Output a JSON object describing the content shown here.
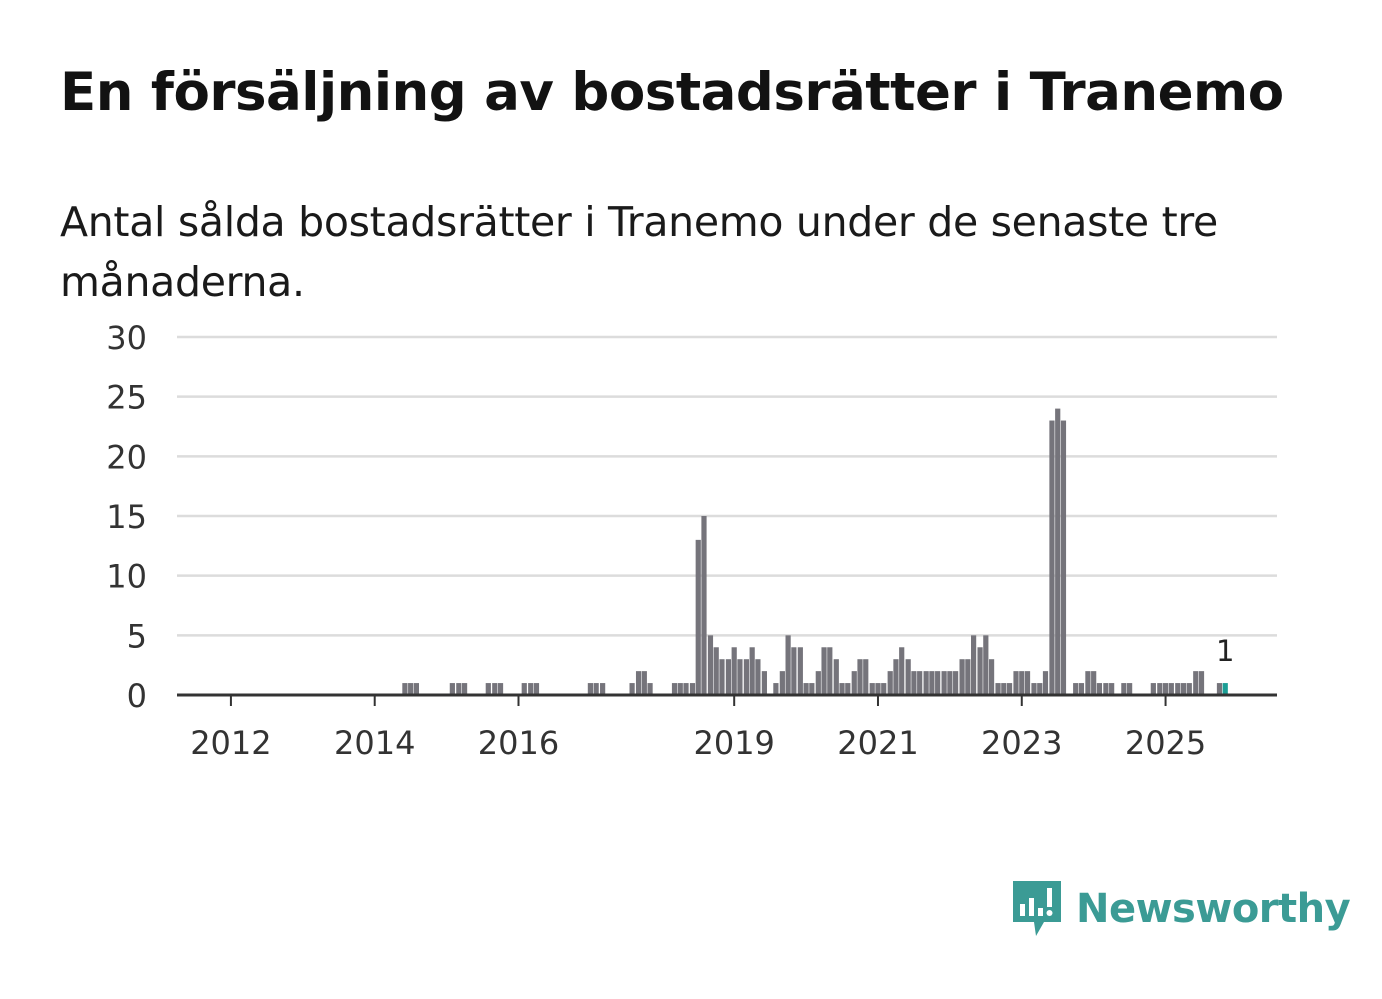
{
  "title": "En försäljning av bostadsrätter i Tranemo",
  "subtitle": "Antal sålda bostadsrätter i Tranemo under de senaste tre månaderna.",
  "brand": {
    "name": "Newsworthy",
    "icon": "newsworthy-logo-icon",
    "color": "#3b9b95"
  },
  "colors": {
    "bar": "#75747b",
    "highlight": "#1b9e95",
    "grid": "#dcdcdc",
    "axis": "#333333"
  },
  "chart_data": {
    "type": "bar",
    "xlabel": "",
    "ylabel": "",
    "ylim": [
      0,
      30
    ],
    "yticks": [
      0,
      5,
      10,
      15,
      20,
      25,
      30
    ],
    "xticks": [
      "2012",
      "2014",
      "2016",
      "2019",
      "2021",
      "2023",
      "2025"
    ],
    "xtick_positions": [
      2012.0,
      2014.0,
      2016.0,
      2019.0,
      2021.0,
      2023.0,
      2025.0
    ],
    "xlim": [
      2011.25,
      2026.55
    ],
    "grid": true,
    "annotation": {
      "text": "1",
      "x": 2025.83
    },
    "highlight_last": true,
    "x": [
      2014.42,
      2014.5,
      2014.58,
      2015.08,
      2015.17,
      2015.25,
      2015.58,
      2015.67,
      2015.75,
      2016.08,
      2016.17,
      2016.25,
      2017.0,
      2017.08,
      2017.17,
      2017.58,
      2017.67,
      2017.75,
      2017.83,
      2018.17,
      2018.25,
      2018.33,
      2018.42,
      2018.5,
      2018.58,
      2018.67,
      2018.75,
      2018.83,
      2018.92,
      2019.0,
      2019.08,
      2019.17,
      2019.25,
      2019.33,
      2019.42,
      2019.58,
      2019.67,
      2019.75,
      2019.83,
      2019.92,
      2020.0,
      2020.08,
      2020.17,
      2020.25,
      2020.33,
      2020.42,
      2020.5,
      2020.58,
      2020.67,
      2020.75,
      2020.83,
      2020.92,
      2021.0,
      2021.08,
      2021.17,
      2021.25,
      2021.33,
      2021.42,
      2021.5,
      2021.58,
      2021.67,
      2021.75,
      2021.83,
      2021.92,
      2022.0,
      2022.08,
      2022.17,
      2022.25,
      2022.33,
      2022.42,
      2022.5,
      2022.58,
      2022.67,
      2022.75,
      2022.83,
      2022.92,
      2023.0,
      2023.08,
      2023.17,
      2023.25,
      2023.33,
      2023.42,
      2023.5,
      2023.58,
      2023.75,
      2023.83,
      2023.92,
      2024.0,
      2024.08,
      2024.17,
      2024.25,
      2024.42,
      2024.5,
      2024.83,
      2024.92,
      2025.0,
      2025.08,
      2025.17,
      2025.25,
      2025.33,
      2025.42,
      2025.5,
      2025.75,
      2025.83
    ],
    "values": [
      1,
      1,
      1,
      1,
      1,
      1,
      1,
      1,
      1,
      1,
      1,
      1,
      1,
      1,
      1,
      1,
      2,
      2,
      1,
      1,
      1,
      1,
      1,
      13,
      15,
      5,
      4,
      3,
      3,
      4,
      3,
      3,
      4,
      3,
      2,
      1,
      2,
      5,
      4,
      4,
      1,
      1,
      2,
      4,
      4,
      3,
      1,
      1,
      2,
      3,
      3,
      1,
      1,
      1,
      2,
      3,
      4,
      3,
      2,
      2,
      2,
      2,
      2,
      2,
      2,
      2,
      3,
      3,
      5,
      4,
      5,
      3,
      1,
      1,
      1,
      2,
      2,
      2,
      1,
      1,
      2,
      23,
      24,
      23,
      1,
      1,
      2,
      2,
      1,
      1,
      1,
      1,
      1,
      1,
      1,
      1,
      1,
      1,
      1,
      1,
      2,
      2,
      1,
      1
    ]
  }
}
